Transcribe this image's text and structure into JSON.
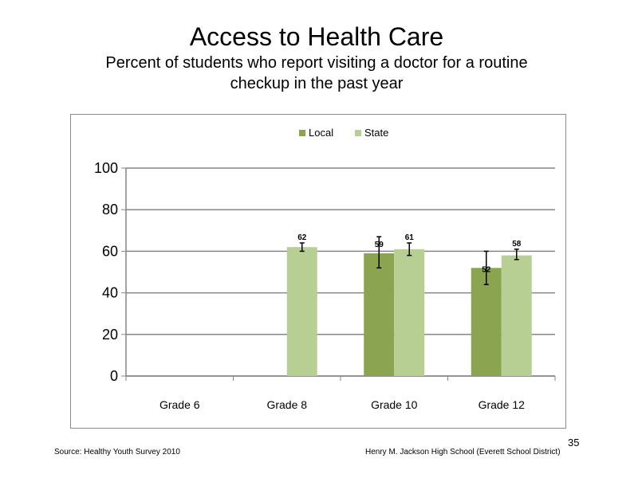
{
  "slide": {
    "title": "Access to Health Care",
    "subtitle_line1": "Percent of students who report visiting a doctor for a routine",
    "subtitle_line2": "checkup in the past year",
    "source": "Source: Healthy Youth Survey 2010",
    "school": "Henry M. Jackson High School (Everett School District)",
    "page_number": "35"
  },
  "colors": {
    "local": "#8aa44f",
    "state": "#b8cf93",
    "axis": "#868686",
    "grid": "#868686"
  },
  "chart_data": {
    "type": "bar",
    "title": "",
    "xlabel": "",
    "ylabel": "",
    "categories": [
      "Grade 6",
      "Grade 8",
      "Grade 10",
      "Grade 12"
    ],
    "ylim": [
      0,
      100
    ],
    "yticks": [
      0,
      20,
      40,
      60,
      80,
      100
    ],
    "grid": true,
    "legend_position": "top",
    "series": [
      {
        "name": "Local",
        "values": [
          null,
          null,
          59,
          52
        ],
        "labels": [
          "",
          "",
          "59",
          "52"
        ],
        "error_low": [
          null,
          null,
          52,
          44
        ],
        "error_high": [
          null,
          null,
          67,
          60
        ]
      },
      {
        "name": "State",
        "values": [
          null,
          62,
          61,
          58
        ],
        "labels": [
          "",
          "62",
          "61",
          "58"
        ],
        "error_low": [
          null,
          60,
          58,
          56
        ],
        "error_high": [
          null,
          64,
          64,
          61
        ]
      }
    ]
  }
}
